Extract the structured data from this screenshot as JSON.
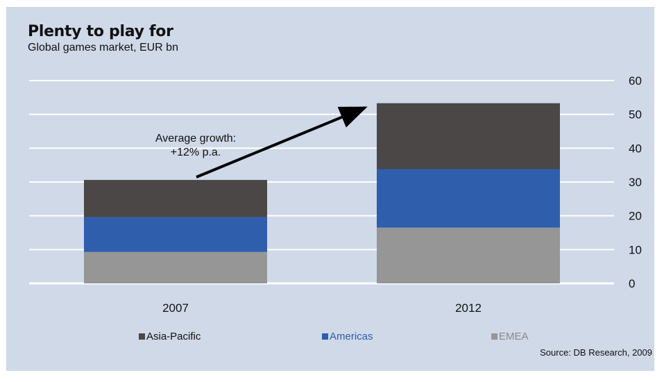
{
  "title": "Plenty to play for",
  "subtitle": "Global games market, EUR bn",
  "source": "Source: DB Research, 2009",
  "annotation": {
    "line1": "Average growth:",
    "line2": "+12% p.a."
  },
  "chart_data": {
    "type": "bar",
    "stacked": true,
    "categories": [
      "2007",
      "2012"
    ],
    "series": [
      {
        "name": "EMEA",
        "values": [
          9.3,
          16.5
        ],
        "color": "#969696"
      },
      {
        "name": "Americas",
        "values": [
          10.3,
          17.3
        ],
        "color": "#2f5ead"
      },
      {
        "name": "Asia-Pacific",
        "values": [
          11.0,
          19.5
        ],
        "color": "#4a4746"
      }
    ],
    "yticks": [
      0,
      10,
      20,
      30,
      40,
      50,
      60
    ],
    "ylim": [
      0,
      60
    ],
    "y_axis_side": "right",
    "grid": true,
    "legend": "bottom",
    "legend_order": [
      "Asia-Pacific",
      "Americas",
      "EMEA"
    ],
    "legend_text_colors": {
      "Asia-Pacific": "#111111",
      "Americas": "#2f5ead",
      "EMEA": "#8a8a8a"
    }
  }
}
